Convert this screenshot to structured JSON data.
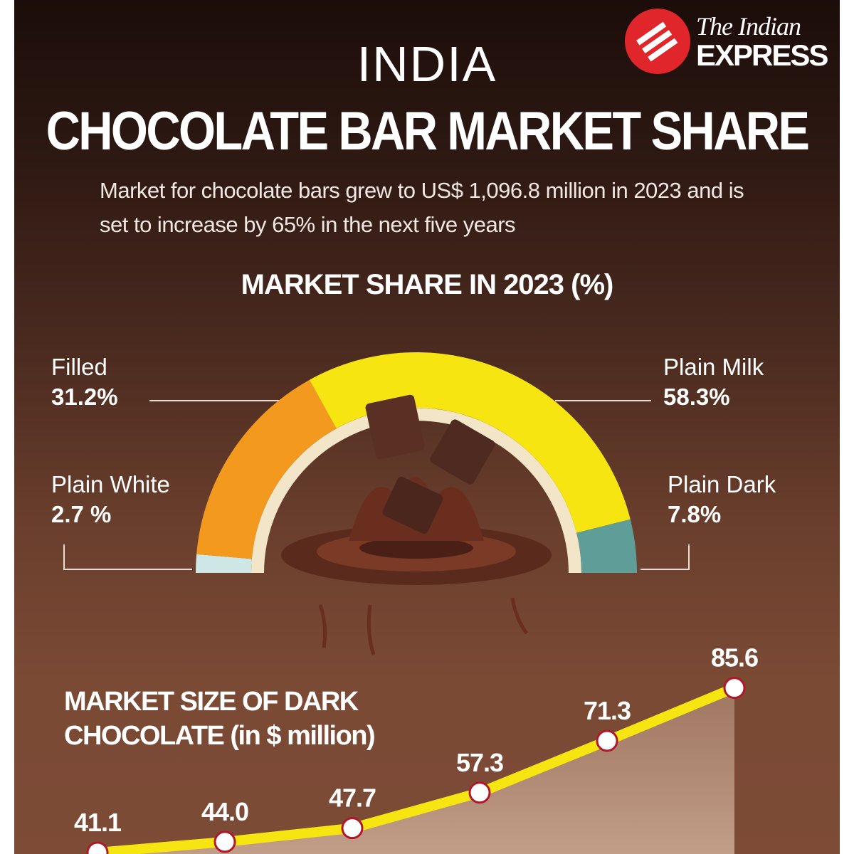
{
  "brand": {
    "logo_text": "The Indian EXPRESS",
    "logo_color": "#e0262a"
  },
  "header": {
    "supertitle": "INDIA",
    "title": "CHOCOLATE BAR MARKET SHARE",
    "subtitle": "Market for chocolate bars grew to US$ 1,096.8 million in 2023 and is set to increase by 65% in the next five years"
  },
  "chart_data": [
    {
      "type": "pie",
      "style": "semicircle gauge",
      "title": "MARKET SHARE IN 2023 (%)",
      "slices": [
        {
          "name": "Plain White",
          "value": 2.7,
          "label": "2.7 %",
          "color": "#cfe6e6"
        },
        {
          "name": "Filled",
          "value": 31.2,
          "label": "31.2%",
          "color": "#f39a1e"
        },
        {
          "name": "Plain Milk",
          "value": 58.3,
          "label": "58.3%",
          "color": "#f7e511"
        },
        {
          "name": "Plain Dark",
          "value": 7.8,
          "label": "7.8%",
          "color": "#5f9e98"
        }
      ]
    },
    {
      "type": "line",
      "title": "MARKET SIZE OF DARK CHOCOLATE (in $ million)",
      "values": [
        41.1,
        44.0,
        47.7,
        57.3,
        71.3,
        85.6
      ],
      "labels": [
        "41.1",
        "44.0",
        "47.7",
        "57.3",
        "71.3",
        "85.6"
      ],
      "line_color": "#f7e511",
      "marker_color": "#ffffff",
      "marker_edge": "#b0182a",
      "grid": false
    }
  ]
}
